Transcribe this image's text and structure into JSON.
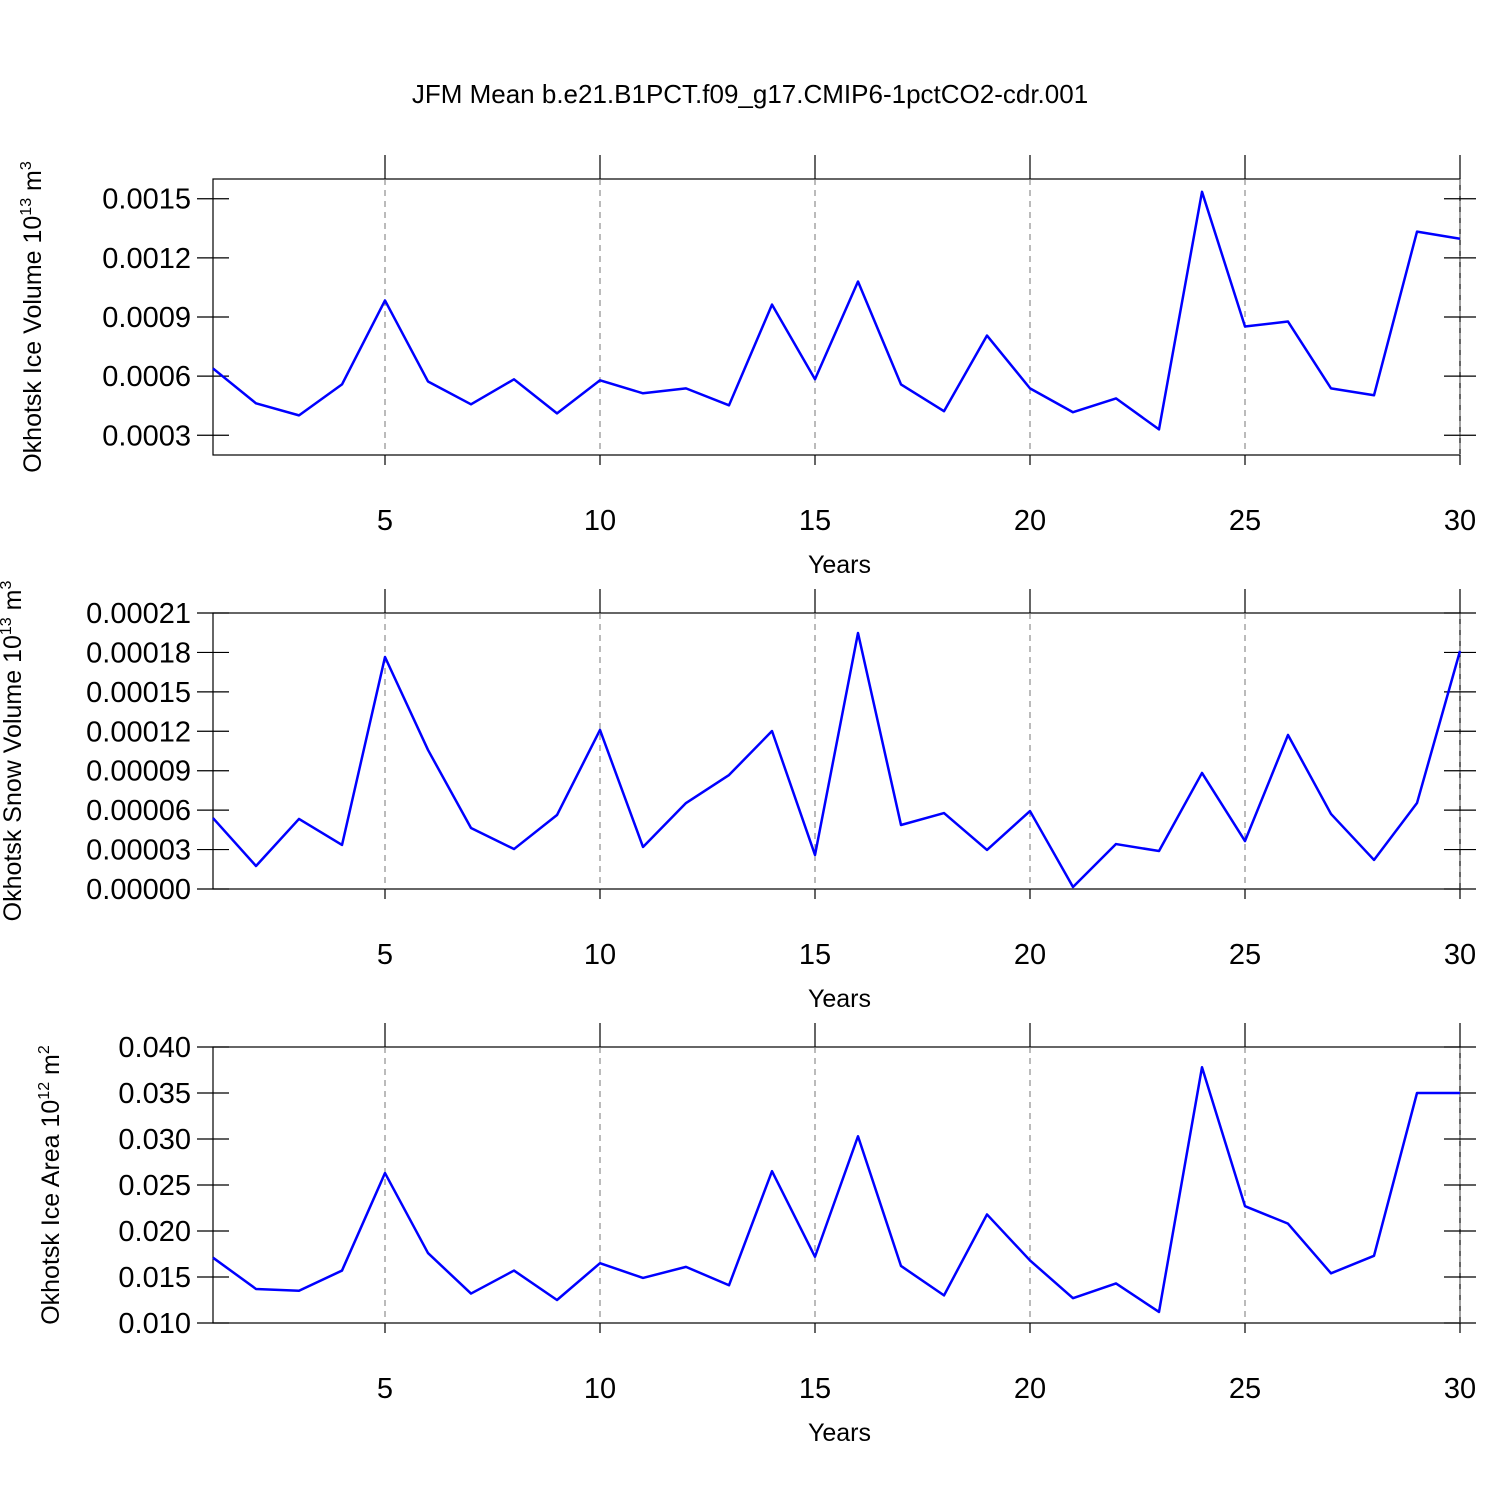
{
  "title": "JFM Mean b.e21.B1PCT.f09_g17.CMIP6-1pctCO2-cdr.001",
  "chart_data": [
    {
      "type": "line",
      "xlabel": "Years",
      "ylabel": {
        "text": "Okhotsk Ice Volume 10",
        "sup": "13",
        "unit": " m",
        "unit_sup": "3"
      },
      "x": [
        1,
        2,
        3,
        4,
        5,
        6,
        7,
        8,
        9,
        10,
        11,
        12,
        13,
        14,
        15,
        16,
        17,
        18,
        19,
        20,
        21,
        22,
        23,
        24,
        25,
        26,
        27,
        28,
        29,
        30
      ],
      "values": [
        0.000639,
        0.000462,
        0.000401,
        0.000558,
        0.000984,
        0.000573,
        0.000457,
        0.000584,
        0.000411,
        0.000579,
        0.000513,
        0.000538,
        0.000452,
        0.000963,
        0.000584,
        0.00108,
        0.000558,
        0.000422,
        0.000806,
        0.000538,
        0.000417,
        0.000487,
        0.00033,
        0.001535,
        0.000852,
        0.000877,
        0.000538,
        0.000503,
        0.001333,
        0.001297
      ],
      "color": "#0000ff",
      "xlim": [
        1,
        30
      ],
      "xticks": [
        5,
        10,
        15,
        20,
        25,
        30
      ],
      "ylim": [
        0.0002,
        0.0016
      ],
      "yticks": [
        0.0003,
        0.0006,
        0.0009,
        0.0012,
        0.0015
      ],
      "xgrid": true
    },
    {
      "type": "line",
      "xlabel": "Years",
      "ylabel": {
        "text": "Okhotsk Snow Volume 10",
        "sup": "13",
        "unit": " m",
        "unit_sup": "3"
      },
      "x": [
        1,
        2,
        3,
        4,
        5,
        6,
        7,
        8,
        9,
        10,
        11,
        12,
        13,
        14,
        15,
        16,
        17,
        18,
        19,
        20,
        21,
        22,
        23,
        24,
        25,
        26,
        27,
        28,
        29,
        30
      ],
      "values": [
        5.4e-05,
        1.75e-05,
        5.33e-05,
        3.35e-05,
        0.0001765,
        0.0001058,
        4.64e-05,
        3.04e-05,
        5.63e-05,
        0.000121,
        3.2e-05,
        6.54e-05,
        8.67e-05,
        0.0001202,
        2.59e-05,
        0.0001948,
        4.87e-05,
        5.78e-05,
        2.97e-05,
        5.93e-05,
        1.5e-06,
        3.42e-05,
        2.89e-05,
        8.83e-05,
        3.65e-05,
        0.0001172,
        5.71e-05,
        2.21e-05,
        6.54e-05,
        0.0001811
      ],
      "color": "#0000ff",
      "xlim": [
        1,
        30
      ],
      "xticks": [
        5,
        10,
        15,
        20,
        25,
        30
      ],
      "ylim": [
        0,
        0.00021
      ],
      "yticks": [
        {
          "value": 0,
          "label": "0.00000"
        },
        3e-05,
        6e-05,
        9e-05,
        0.00012,
        0.00015,
        0.00018,
        0.00021
      ],
      "xgrid": true
    },
    {
      "type": "line",
      "xlabel": "Years",
      "ylabel": {
        "text": "Okhotsk Ice Area 10",
        "sup": "12",
        "unit": " m",
        "unit_sup": "2"
      },
      "x": [
        1,
        2,
        3,
        4,
        5,
        6,
        7,
        8,
        9,
        10,
        11,
        12,
        13,
        14,
        15,
        16,
        17,
        18,
        19,
        20,
        21,
        22,
        23,
        24,
        25,
        26,
        27,
        28,
        29,
        30
      ],
      "values": [
        0.0171,
        0.0137,
        0.0135,
        0.0157,
        0.0263,
        0.0176,
        0.0132,
        0.0157,
        0.0125,
        0.0165,
        0.0149,
        0.0161,
        0.0141,
        0.0265,
        0.0172,
        0.0303,
        0.0162,
        0.013,
        0.0218,
        0.0168,
        0.0127,
        0.0143,
        0.0112,
        0.0378,
        0.0227,
        0.0208,
        0.0154,
        0.0173,
        0.035,
        0.035
      ],
      "color": "#0000ff",
      "xlim": [
        1,
        30
      ],
      "xticks": [
        5,
        10,
        15,
        20,
        25,
        30
      ],
      "ylim": [
        0.01,
        0.04
      ],
      "yticks": [
        {
          "value": 0.01,
          "label": "0.010"
        },
        0.015,
        {
          "value": 0.02,
          "label": "0.020"
        },
        0.025,
        {
          "value": 0.03,
          "label": "0.030"
        },
        0.035,
        {
          "value": 0.04,
          "label": "0.040"
        }
      ],
      "xgrid": true
    }
  ]
}
